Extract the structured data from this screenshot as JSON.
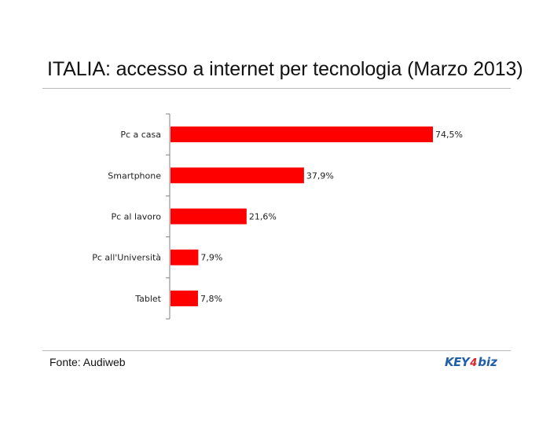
{
  "header": {
    "title": "ITALIA: accesso a internet per tecnologia (Marzo 2013)"
  },
  "footer": {
    "source": "Fonte: Audiweb",
    "logo_text": "KEY4biz"
  },
  "colors": {
    "bar": "#ff0000",
    "axis": "#808080",
    "rule": "#b9b9b9"
  },
  "chart_data": {
    "type": "bar",
    "orientation": "horizontal",
    "categories": [
      "Pc a casa",
      "Smartphone",
      "Pc al lavoro",
      "Pc all'Università",
      "Tablet"
    ],
    "values": [
      74.5,
      37.9,
      21.6,
      7.9,
      7.8
    ],
    "value_labels": [
      "74,5%",
      "37,9%",
      "21,6%",
      "7,9%",
      "7,8%"
    ],
    "unit": "%",
    "xlim": [
      0,
      74.5
    ],
    "grid": false,
    "legend": "none"
  }
}
